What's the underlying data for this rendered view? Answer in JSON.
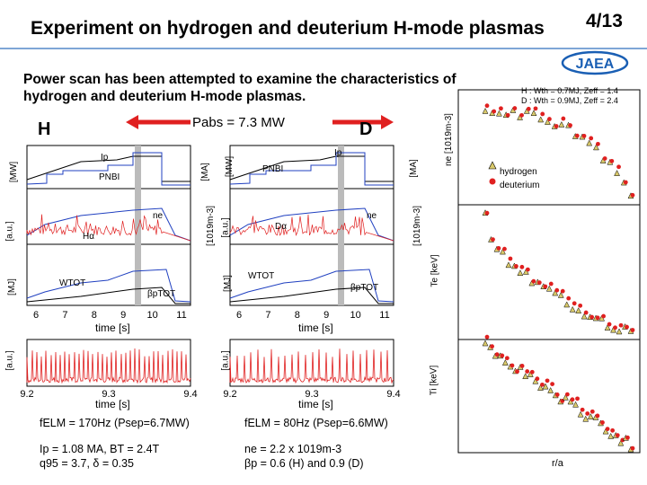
{
  "header": {
    "title": "Experiment on hydrogen and deuterium H-mode plasmas",
    "page_number": "4/13",
    "logo_text": "JAEA"
  },
  "intro": "Power scan has been attempted to examine the characteristics of hydrogen and deuterium H-mode plasmas.",
  "pabs_label": "Pabs = 7.3 MW",
  "hydrogen_panel": {
    "label": "H",
    "ip": "Ip",
    "pnbi": "PNBI",
    "ne": "ne",
    "halpha": "Hα",
    "wtot": "WTOT",
    "betap": "βpTOT",
    "time_label": "time [s]",
    "elm_note": "fELM = 170Hz (Psep=6.7MW)",
    "params_1": "Ip = 1.08 MA, BT = 2.4T",
    "params_2": "q95 = 3.7, δ = 0.35",
    "ticks_top": [
      "6",
      "7",
      "8",
      "9",
      "10",
      "11"
    ],
    "ticks_bottom": [
      "9.2",
      "9.3",
      "9.4"
    ]
  },
  "deuterium_panel": {
    "label": "D",
    "ip": "Ip",
    "pnbi": "PNBI",
    "ne": "ne",
    "dalpha": "Dα",
    "wtot": "WTOT",
    "betap": "βpTOT",
    "time_label": "time [s]",
    "elm_note": "fELM = 80Hz (Psep=6.6MW)",
    "params_1": "ne = 2.2 x 1019m-3",
    "params_2": "βp = 0.6 (H) and 0.9 (D)",
    "ticks_top": [
      "6",
      "7",
      "8",
      "9",
      "10",
      "11"
    ],
    "ticks_bottom": [
      "9.2",
      "9.3",
      "9.4"
    ]
  },
  "axis_labels": {
    "mw": "[MW]",
    "ma": "[MA]",
    "au": "[a.u.]",
    "ne_units": "[1019m-3]",
    "mj": "[MJ]"
  },
  "profile_panel": {
    "legend_line_h": "H : Wth = 0.7MJ, Zeff = 1.4",
    "legend_line_d": "D : Wth = 0.9MJ, Zeff = 2.4",
    "ne_label": "ne [1019m-3]",
    "te_label": "Te [keV]",
    "ti_label": "Ti [keV]",
    "xlabel": "r/a",
    "legend_hydrogen": "hydrogen",
    "legend_deuterium": "deuterium",
    "colors": {
      "hydrogen": "#d9c96a",
      "deuterium": "#e02020"
    }
  }
}
